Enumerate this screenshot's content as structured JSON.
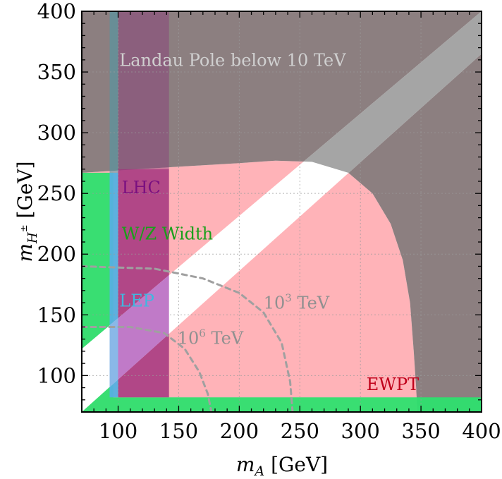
{
  "chart_data": {
    "type": "area",
    "title": "",
    "xlabel": {
      "main": "m",
      "sub": "A",
      "unit": " [GeV]"
    },
    "ylabel": {
      "main": "m",
      "sub": "H",
      "sup": "±",
      "unit": " [GeV]"
    },
    "xlim": [
      70,
      400
    ],
    "ylim": [
      70,
      400
    ],
    "xticks": [
      100,
      150,
      200,
      250,
      300,
      350,
      400
    ],
    "yticks": [
      100,
      150,
      200,
      250,
      300,
      350,
      400
    ],
    "grid": true,
    "colors": {
      "ewpt": "#ffb3b8",
      "ww_width": "#2ee06e",
      "lep": "#55b0e0",
      "lhc": "#a0307d",
      "landau": "#8c7f80",
      "band": "#ffffff",
      "contour": "#a0a0a0"
    },
    "regions": [
      {
        "key": "ewpt",
        "label": "EWPT",
        "label_color": "#c0001a",
        "label_at": [
          305,
          88
        ],
        "boundary": [
          [
            70,
            70
          ],
          [
            70,
            267
          ],
          [
            150,
            272
          ],
          [
            200,
            275
          ],
          [
            230,
            277
          ],
          [
            260,
            276
          ],
          [
            290,
            267
          ],
          [
            310,
            250
          ],
          [
            325,
            225
          ],
          [
            335,
            195
          ],
          [
            341,
            160
          ],
          [
            344,
            120
          ],
          [
            346,
            90
          ],
          [
            347,
            70
          ]
        ]
      },
      {
        "key": "ww_width",
        "label": "W/Z Width",
        "label_color": "#1aa01a",
        "label_at": [
          103,
          212
        ],
        "boundary": [
          [
            70,
            70
          ],
          [
            400,
            70
          ],
          [
            400,
            82
          ],
          [
            96,
            82
          ],
          [
            96,
            267
          ],
          [
            70,
            267
          ]
        ]
      },
      {
        "key": "lep",
        "label": "LEP",
        "label_color": "#3fb8e0",
        "label_at": [
          101,
          157
        ],
        "boundary": [
          [
            93,
            82
          ],
          [
            100,
            82
          ],
          [
            100,
            267
          ],
          [
            93,
            267
          ]
        ]
      },
      {
        "key": "lhc",
        "label": "LHC",
        "label_color": "#7a1080",
        "label_at": [
          103,
          250
        ],
        "boundary": [
          [
            100,
            82
          ],
          [
            142,
            82
          ],
          [
            142,
            270
          ],
          [
            100,
            270
          ]
        ]
      },
      {
        "key": "landau",
        "label": "Landau Pole below 10 TeV",
        "label_color": "#d0d0d0",
        "label_at": [
          101,
          355
        ],
        "boundary": [
          [
            70,
            267
          ],
          [
            150,
            272
          ],
          [
            200,
            275
          ],
          [
            230,
            277
          ],
          [
            260,
            276
          ],
          [
            290,
            267
          ],
          [
            310,
            250
          ],
          [
            325,
            225
          ],
          [
            335,
            195
          ],
          [
            341,
            160
          ],
          [
            344,
            120
          ],
          [
            346,
            90
          ],
          [
            347,
            70
          ],
          [
            400,
            70
          ],
          [
            400,
            400
          ],
          [
            70,
            400
          ]
        ]
      }
    ],
    "lep_dark_strip": {
      "x": [
        93,
        100
      ],
      "y": [
        267,
        400
      ]
    },
    "lhc_upper_strip": {
      "x": [
        100,
        142
      ],
      "y": [
        270,
        400
      ]
    },
    "allowed_band": {
      "lower_edge": [
        [
          70,
          70
        ],
        [
          400,
          365
        ]
      ],
      "upper_edge": [
        [
          70,
          122
        ],
        [
          400,
          400
        ]
      ],
      "note": ""
    },
    "contours": [
      {
        "label": "10^3 TeV",
        "label_text": "10",
        "label_sup": "3",
        "label_unit": " TeV",
        "label_at": [
          220,
          155
        ],
        "points": [
          [
            70,
            190
          ],
          [
            130,
            188
          ],
          [
            170,
            180
          ],
          [
            200,
            168
          ],
          [
            220,
            152
          ],
          [
            235,
            127
          ],
          [
            242,
            95
          ],
          [
            244,
            70
          ]
        ]
      },
      {
        "label": "10^6 TeV",
        "label_text": "10",
        "label_sup": "6",
        "label_unit": " TeV",
        "label_at": [
          149,
          126
        ],
        "points": [
          [
            70,
            140
          ],
          [
            110,
            140
          ],
          [
            138,
            135
          ],
          [
            155,
            122
          ],
          [
            167,
            103
          ],
          [
            174,
            85
          ],
          [
            177,
            70
          ]
        ]
      }
    ]
  }
}
